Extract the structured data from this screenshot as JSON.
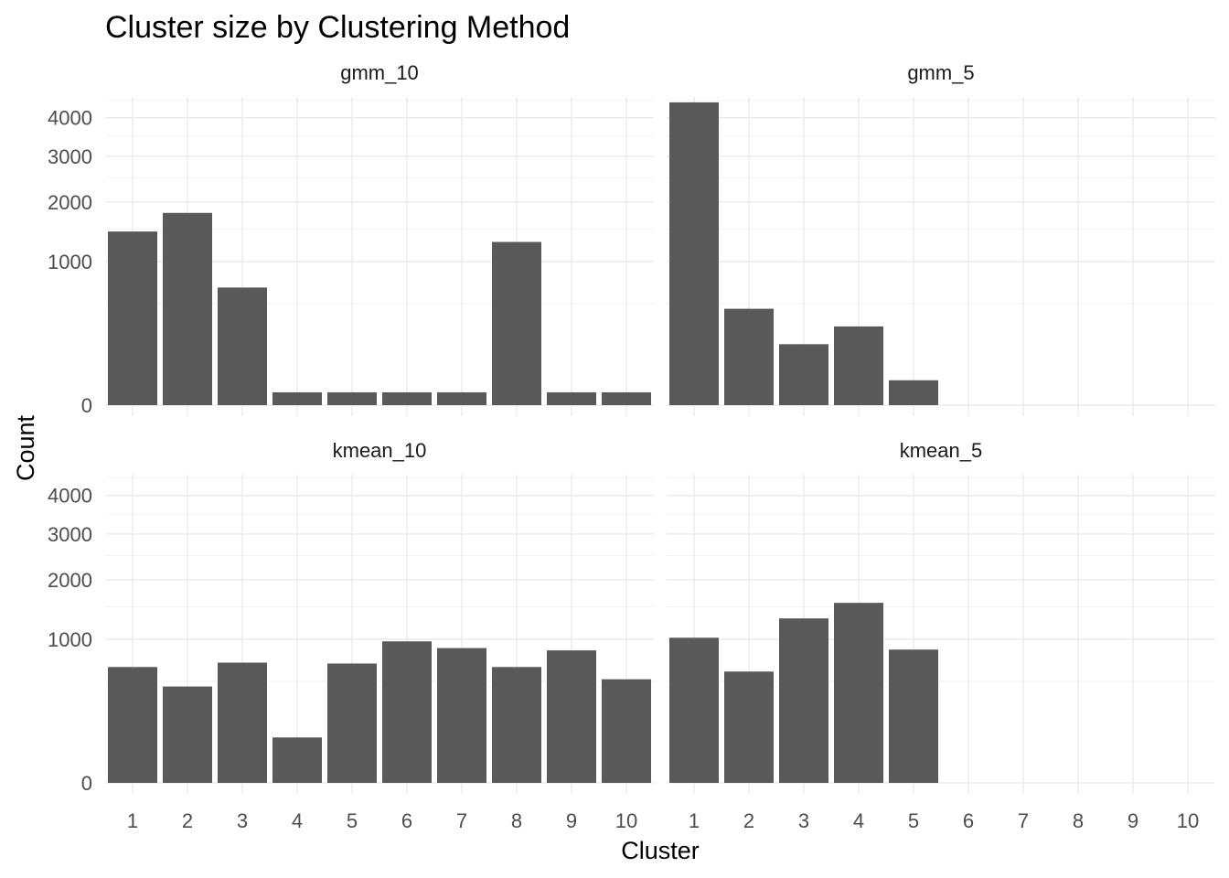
{
  "chart_data": {
    "type": "bar",
    "title": "Cluster size by Clustering Method",
    "xlabel": "Cluster",
    "ylabel": "Count",
    "x_ticks": [
      "1",
      "2",
      "3",
      "4",
      "5",
      "6",
      "7",
      "8",
      "9",
      "10"
    ],
    "y_ticks": [
      {
        "value": 0,
        "label": "0"
      },
      {
        "value": 1000,
        "label": "1000"
      },
      {
        "value": 2000,
        "label": "2000"
      },
      {
        "value": 3000,
        "label": "3000"
      },
      {
        "value": 4000,
        "label": "4000"
      }
    ],
    "y_scale": "sqrt",
    "ylim": [
      0,
      4600
    ],
    "grid": true,
    "bar_color": "#595959",
    "panels": [
      {
        "name": "gmm_10",
        "categories": [
          "1",
          "2",
          "3",
          "4",
          "5",
          "6",
          "7",
          "8",
          "9",
          "10"
        ],
        "values": [
          1460,
          1790,
          670,
          8,
          8,
          8,
          8,
          1290,
          8,
          8
        ]
      },
      {
        "name": "gmm_5",
        "categories": [
          "1",
          "2",
          "3",
          "4",
          "5"
        ],
        "values": [
          4440,
          450,
          180,
          300,
          30
        ]
      },
      {
        "name": "kmean_10",
        "categories": [
          "1",
          "2",
          "3",
          "4",
          "5",
          "6",
          "7",
          "8",
          "9",
          "10"
        ],
        "values": [
          650,
          450,
          700,
          100,
          690,
          970,
          880,
          650,
          850,
          520
        ]
      },
      {
        "name": "kmean_5",
        "categories": [
          "1",
          "2",
          "3",
          "4",
          "5"
        ],
        "values": [
          1020,
          600,
          1310,
          1570,
          860
        ]
      }
    ]
  }
}
